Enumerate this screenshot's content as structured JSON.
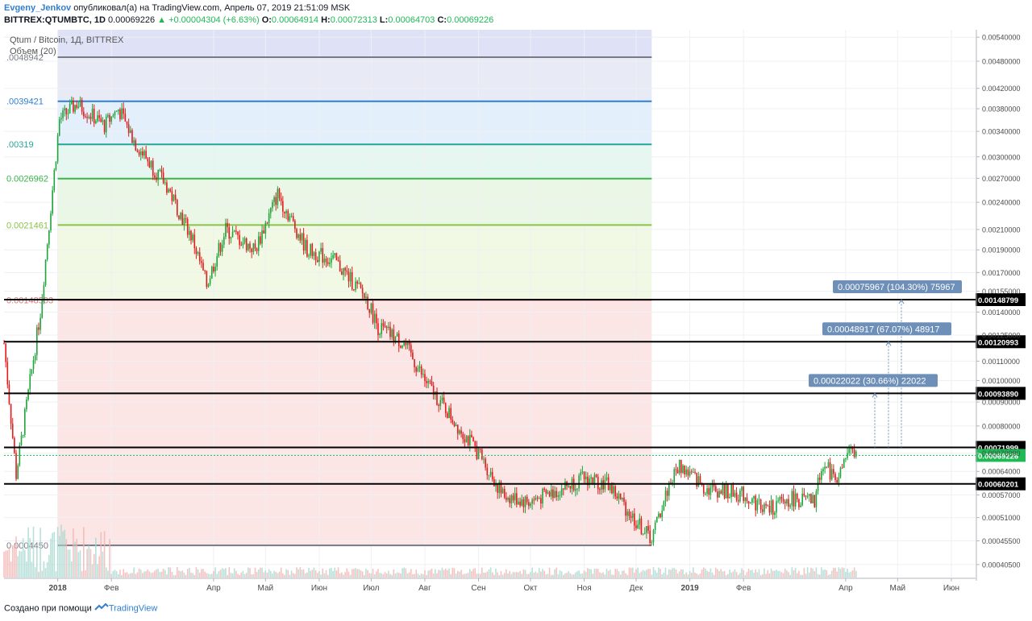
{
  "header": {
    "author": "Evgeny_Jenkov",
    "published": "опубликовал(а) на TradingView.com, Апрель 07, 2019 21:51:09 MSK",
    "symbol": "BITTREX:QTUMBTC, 1D",
    "last": "0.00069226",
    "change": "▲ +0.00004304 (+6.63%)",
    "o_label": "O:",
    "o": "0.00064914",
    "h_label": "H:",
    "h": "0.00072313",
    "l_label": "L:",
    "l": "0.00064703",
    "c_label": "C:",
    "c": "0.00069226"
  },
  "legend": {
    "title": "Qtum / Bitcoin, 1Д, BITTREX",
    "volume": "Объем (20)"
  },
  "footer": {
    "created": "Создано при помощи",
    "brand": "TradingView"
  },
  "colors": {
    "up": "#26a69a",
    "down": "#ef5350",
    "candle_up": "#1fa33b",
    "candle_down": "#e31b1b",
    "level": "#000000",
    "label_bg": "#6e8fb8",
    "current": "#1fb955"
  },
  "chart_data": {
    "type": "candlestick",
    "title": "Qtum / Bitcoin, 1Д, BITTREX",
    "y_scale": "log",
    "ylim": [
      0.00038,
      0.0056
    ],
    "y_ticks": [
      "0.00540000",
      "0.00480000",
      "0.00420000",
      "0.00380000",
      "0.00340000",
      "0.00300000",
      "0.00270000",
      "0.00240000",
      "0.00210000",
      "0.00190000",
      "0.00170000",
      "0.00155000",
      "0.00140000",
      "0.00125000",
      "0.00110000",
      "0.00100000",
      "0.00090000",
      "0.00080000",
      "0.00070000",
      "0.00064000",
      "0.00057000",
      "0.00051000",
      "0.00045500",
      "0.00040500"
    ],
    "x_ticks": [
      "2018",
      "Фев",
      "Апр",
      "Май",
      "Июн",
      "Июл",
      "Авг",
      "Сен",
      "Окт",
      "Ноя",
      "Дек",
      "2019",
      "Фев",
      "Апр",
      "Май",
      "Июн"
    ],
    "price_path_anchors": [
      {
        "date": "2017-12-01",
        "price": 0.0012
      },
      {
        "date": "2017-12-08",
        "price": 0.00063
      },
      {
        "date": "2017-12-22",
        "price": 0.0014
      },
      {
        "date": "2018-01-02",
        "price": 0.0036
      },
      {
        "date": "2018-01-12",
        "price": 0.0039
      },
      {
        "date": "2018-01-28",
        "price": 0.0035
      },
      {
        "date": "2018-02-05",
        "price": 0.0038
      },
      {
        "date": "2018-02-15",
        "price": 0.0032
      },
      {
        "date": "2018-03-05",
        "price": 0.0026
      },
      {
        "date": "2018-03-20",
        "price": 0.002
      },
      {
        "date": "2018-03-28",
        "price": 0.0016
      },
      {
        "date": "2018-04-08",
        "price": 0.0021
      },
      {
        "date": "2018-04-25",
        "price": 0.0019
      },
      {
        "date": "2018-05-08",
        "price": 0.0025
      },
      {
        "date": "2018-05-25",
        "price": 0.0019
      },
      {
        "date": "2018-06-10",
        "price": 0.0018
      },
      {
        "date": "2018-06-28",
        "price": 0.0015
      },
      {
        "date": "2018-07-05",
        "price": 0.0013
      },
      {
        "date": "2018-07-20",
        "price": 0.0012
      },
      {
        "date": "2018-08-01",
        "price": 0.001
      },
      {
        "date": "2018-08-20",
        "price": 0.0008
      },
      {
        "date": "2018-09-01",
        "price": 0.0007
      },
      {
        "date": "2018-09-15",
        "price": 0.00057
      },
      {
        "date": "2018-09-30",
        "price": 0.00055
      },
      {
        "date": "2018-10-15",
        "price": 0.00058
      },
      {
        "date": "2018-11-01",
        "price": 0.00062
      },
      {
        "date": "2018-11-15",
        "price": 0.0006
      },
      {
        "date": "2018-12-01",
        "price": 0.0005
      },
      {
        "date": "2018-12-10",
        "price": 0.00046
      },
      {
        "date": "2018-12-20",
        "price": 0.0006
      },
      {
        "date": "2018-12-26",
        "price": 0.00066
      },
      {
        "date": "2019-01-10",
        "price": 0.00059
      },
      {
        "date": "2019-02-01",
        "price": 0.00057
      },
      {
        "date": "2019-02-15",
        "price": 0.00053
      },
      {
        "date": "2019-03-01",
        "price": 0.00056
      },
      {
        "date": "2019-03-14",
        "price": 0.00055
      },
      {
        "date": "2019-03-18",
        "price": 0.00066
      },
      {
        "date": "2019-03-28",
        "price": 0.00062
      },
      {
        "date": "2019-04-02",
        "price": 0.0007
      },
      {
        "date": "2019-04-07",
        "price": 0.00069226
      }
    ],
    "fib_levels": [
      {
        "label": ".0048942",
        "price": 0.0048942,
        "color": "#787b86"
      },
      {
        "label": ".0039421",
        "price": 0.0039421,
        "color": "#2f7fd1"
      },
      {
        "label": ".00319",
        "price": 0.00319,
        "color": "#26a69a"
      },
      {
        "label": "0.0026962",
        "price": 0.0026962,
        "color": "#39b54a"
      },
      {
        "label": "0.0021461",
        "price": 0.0021461,
        "color": "#8bc34a"
      },
      {
        "label": "0.00148503",
        "price": 0.00148503,
        "color": "#e57373"
      },
      {
        "label": "0.0004450",
        "price": 0.000445,
        "color": "#787b86"
      }
    ],
    "horizontal_levels": [
      {
        "label": "0.00148799",
        "price": 0.00148799
      },
      {
        "label": "0.00120993",
        "price": 0.00120993
      },
      {
        "label": "0.00093890",
        "price": 0.0009389
      },
      {
        "label": "0.00071999",
        "price": 0.00071999
      },
      {
        "label": "0.00060201",
        "price": 0.00060201
      }
    ],
    "current_price": {
      "label": "0.00069226",
      "price": 0.00069226
    },
    "measure_labels": [
      {
        "text": "0.00022022 (30.66%) 22022",
        "price": 0.0009389
      },
      {
        "text": "0.00048917 (67.07%) 48917",
        "price": 0.00120993
      },
      {
        "text": "0.00075967 (104.30%) 75967",
        "price": 0.00148799
      }
    ]
  }
}
